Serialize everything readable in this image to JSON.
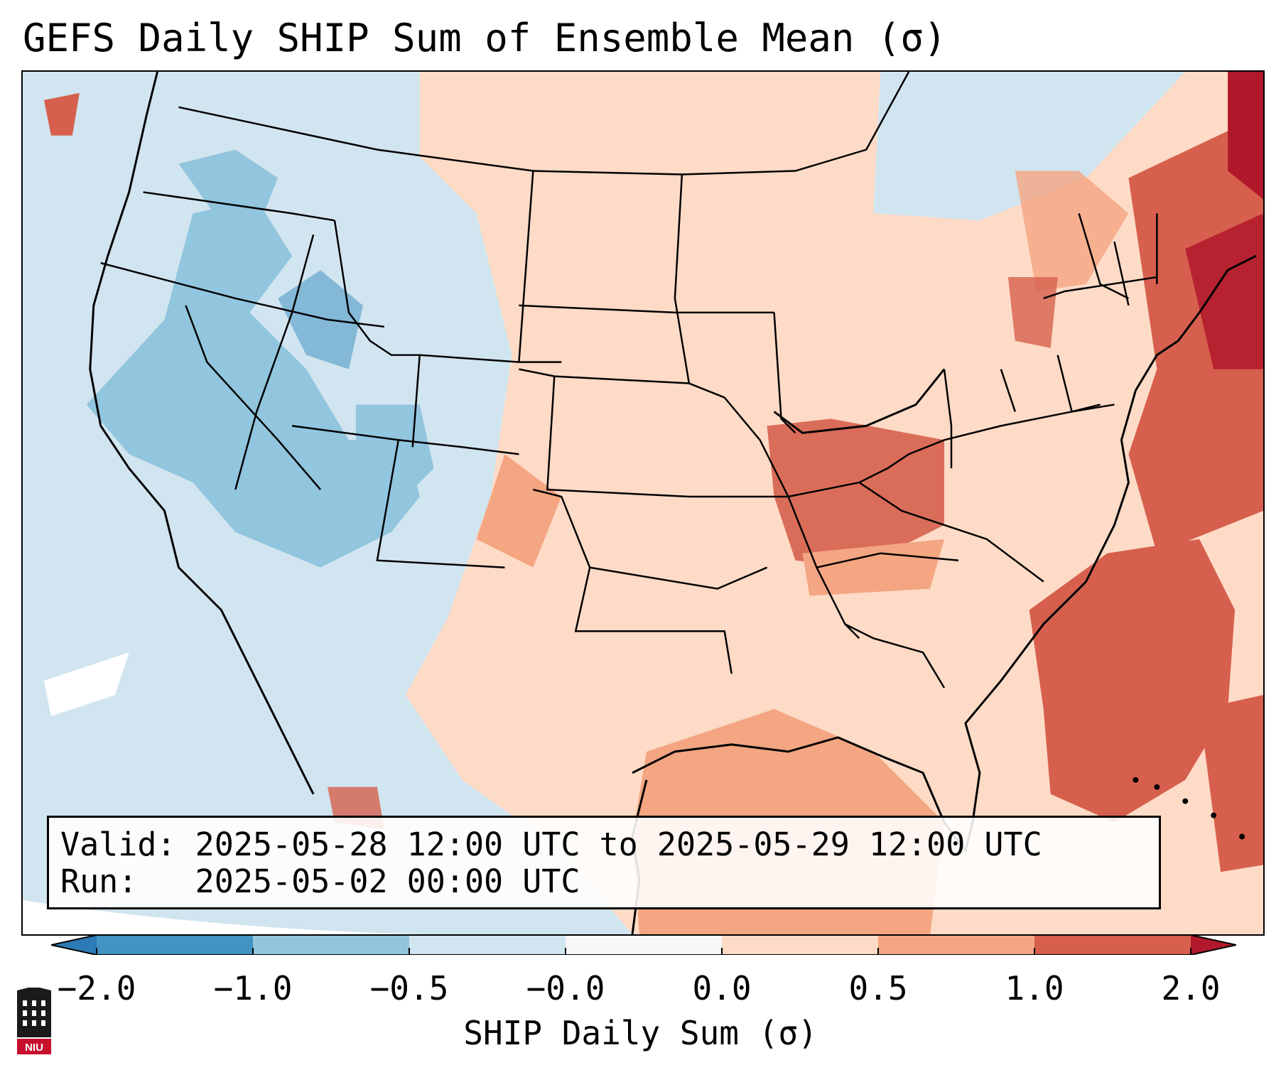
{
  "title": "GEFS Daily SHIP Sum of Ensemble Mean (σ)",
  "valid_line": "Valid: 2025-05-28 12:00 UTC to 2025-05-29 12:00 UTC",
  "run_line": "Run:   2025-05-02 00:00 UTC",
  "colorbar": {
    "label": "SHIP Daily Sum (σ)",
    "ticks": [
      "−2.0",
      "−1.0",
      "−0.5",
      "−0.0",
      "0.0",
      "0.5",
      "1.0",
      "2.0"
    ],
    "colors": [
      "#2c7bb6",
      "#4393c3",
      "#92c5de",
      "#d1e5f0",
      "#f7f7f7",
      "#fddbc7",
      "#f4a582",
      "#d6604d",
      "#b2182b"
    ]
  },
  "logo": {
    "text": "NIU"
  },
  "map": {
    "region": "Continental United States",
    "palette": {
      "strong_neg": "#4393c3",
      "neg": "#92c5de",
      "weak_neg": "#d1e5f0",
      "weak_pos": "#fddbc7",
      "pos": "#f4a582",
      "strong_pos": "#d6604d",
      "very_pos": "#b2182b"
    }
  }
}
